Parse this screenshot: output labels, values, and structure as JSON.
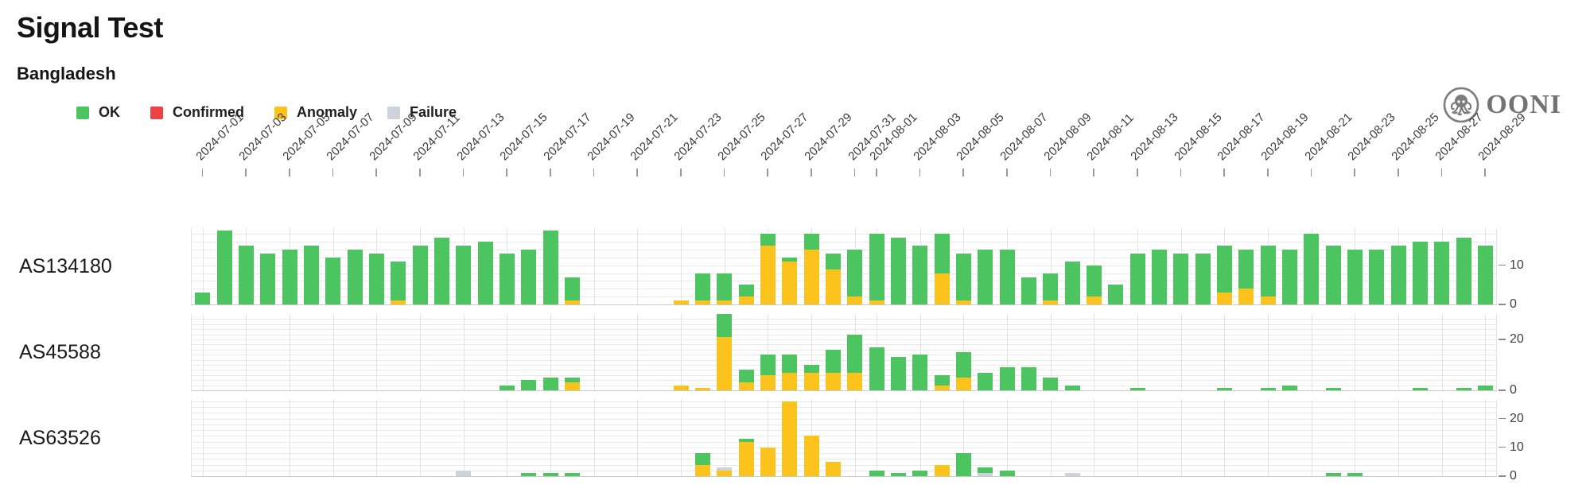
{
  "logo": {
    "text": "OONI"
  },
  "chart_data": {
    "type": "bar",
    "stacked": true,
    "title": "Signal Test",
    "subtitle": "Bangladesh",
    "grid": true,
    "legend_position": "top-left",
    "stack_order_bottom_to_top": [
      "anomaly",
      "failure",
      "ok"
    ],
    "colors": {
      "ok": "#4cc45f",
      "confirmed": "#ee4343",
      "anomaly": "#fbc31b",
      "failure": "#ccd3da"
    },
    "legend": [
      {
        "key": "ok",
        "label": "OK",
        "color": "#4cc45f"
      },
      {
        "key": "confirmed",
        "label": "Confirmed",
        "color": "#ee4343"
      },
      {
        "key": "anomaly",
        "label": "Anomaly",
        "color": "#fbc31b"
      },
      {
        "key": "failure",
        "label": "Failure",
        "color": "#ccd3da"
      }
    ],
    "x_start": "2024-07-01",
    "x_end": "2024-08-29",
    "days": 60,
    "x_tick_labels": [
      "2024-07-01",
      "2024-07-03",
      "2024-07-05",
      "2024-07-07",
      "2024-07-09",
      "2024-07-11",
      "2024-07-13",
      "2024-07-15",
      "2024-07-17",
      "2024-07-19",
      "2024-07-21",
      "2024-07-23",
      "2024-07-25",
      "2024-07-27",
      "2024-07-29",
      "2024-07-31",
      "2024-08-01",
      "2024-08-03",
      "2024-08-05",
      "2024-08-07",
      "2024-08-09",
      "2024-08-11",
      "2024-08-13",
      "2024-08-15",
      "2024-08-17",
      "2024-08-19",
      "2024-08-21",
      "2024-08-23",
      "2024-08-25",
      "2024-08-27",
      "2024-08-29"
    ],
    "rows": [
      {
        "label": "AS134180",
        "ymax": 19.5,
        "yticks": [
          0,
          10
        ],
        "ok": [
          3,
          19,
          15,
          13,
          14,
          15,
          12,
          14,
          13,
          10,
          15,
          17,
          15,
          16,
          13,
          14,
          19,
          6,
          0,
          0,
          0,
          0,
          0,
          7,
          7,
          3,
          3,
          1,
          4,
          4,
          12,
          17,
          17,
          15,
          10,
          12,
          14,
          14,
          7,
          7,
          11,
          8,
          5,
          13,
          14,
          13,
          13,
          12,
          10,
          13,
          14,
          18,
          15,
          14,
          14,
          15,
          16,
          16,
          17,
          15
        ],
        "anomaly": [
          0,
          0,
          0,
          0,
          0,
          0,
          0,
          0,
          0,
          1,
          0,
          0,
          0,
          0,
          0,
          0,
          0,
          1,
          0,
          0,
          0,
          0,
          1,
          1,
          1,
          2,
          15,
          11,
          14,
          9,
          2,
          1,
          0,
          0,
          8,
          1,
          0,
          0,
          0,
          1,
          0,
          2,
          0,
          0,
          0,
          0,
          0,
          3,
          4,
          2,
          0,
          0,
          0,
          0,
          0,
          0,
          0,
          0,
          0,
          0
        ],
        "failure": [
          0,
          0,
          0,
          0,
          0,
          0,
          0,
          0,
          0,
          0,
          0,
          0,
          0,
          0,
          0,
          0,
          0,
          0,
          0,
          0,
          0,
          0,
          0,
          0,
          0,
          0,
          0,
          0,
          0,
          0,
          0,
          0,
          0,
          0,
          0,
          0,
          0,
          0,
          0,
          0,
          0,
          0,
          0,
          0,
          0,
          0,
          0,
          0,
          0,
          0,
          0,
          0,
          0,
          0,
          0,
          0,
          0,
          0,
          0,
          0
        ]
      },
      {
        "label": "AS45588",
        "ymax": 30,
        "yticks": [
          0,
          20
        ],
        "ok": [
          0,
          0,
          0,
          0,
          0,
          0,
          0,
          0,
          0,
          0,
          0,
          0,
          0,
          0,
          2,
          4,
          5,
          2,
          0,
          0,
          0,
          0,
          0,
          0,
          9,
          5,
          8,
          7,
          3,
          9,
          15,
          17,
          13,
          14,
          4,
          10,
          7,
          9,
          9,
          5,
          2,
          0,
          0,
          1,
          0,
          0,
          0,
          1,
          0,
          1,
          2,
          0,
          1,
          0,
          0,
          0,
          1,
          0,
          1,
          2
        ],
        "anomaly": [
          0,
          0,
          0,
          0,
          0,
          0,
          0,
          0,
          0,
          0,
          0,
          0,
          0,
          0,
          0,
          0,
          0,
          3,
          0,
          0,
          0,
          0,
          2,
          1,
          21,
          3,
          6,
          7,
          7,
          7,
          7,
          0,
          0,
          0,
          2,
          5,
          0,
          0,
          0,
          0,
          0,
          0,
          0,
          0,
          0,
          0,
          0,
          0,
          0,
          0,
          0,
          0,
          0,
          0,
          0,
          0,
          0,
          0,
          0,
          0
        ],
        "failure": [
          0,
          0,
          0,
          0,
          0,
          0,
          0,
          0,
          0,
          0,
          0,
          0,
          0,
          0,
          0,
          0,
          0,
          0,
          0,
          0,
          0,
          0,
          0,
          0,
          0,
          0,
          0,
          0,
          0,
          0,
          0,
          0,
          0,
          0,
          0,
          0,
          0,
          0,
          0,
          0,
          0,
          0,
          0,
          0,
          0,
          0,
          0,
          0,
          0,
          0,
          0,
          0,
          0,
          0,
          0,
          0,
          0,
          0,
          0,
          0
        ]
      },
      {
        "label": "AS63526",
        "ymax": 26.5,
        "yticks": [
          0,
          10,
          20
        ],
        "ok": [
          0,
          0,
          0,
          0,
          0,
          0,
          0,
          0,
          0,
          0,
          0,
          0,
          0,
          0,
          0,
          1,
          1,
          1,
          0,
          0,
          0,
          0,
          0,
          4,
          0,
          1,
          0,
          0,
          0,
          0,
          0,
          2,
          1,
          2,
          0,
          8,
          2,
          2,
          0,
          0,
          0,
          0,
          0,
          0,
          0,
          0,
          0,
          0,
          0,
          0,
          0,
          0,
          1,
          1,
          0,
          0,
          0,
          0,
          0,
          0
        ],
        "anomaly": [
          0,
          0,
          0,
          0,
          0,
          0,
          0,
          0,
          0,
          0,
          0,
          0,
          0,
          0,
          0,
          0,
          0,
          0,
          0,
          0,
          0,
          0,
          0,
          4,
          2,
          12,
          10,
          26,
          14,
          5,
          0,
          0,
          0,
          0,
          4,
          0,
          0,
          0,
          0,
          0,
          0,
          0,
          0,
          0,
          0,
          0,
          0,
          0,
          0,
          0,
          0,
          0,
          0,
          0,
          0,
          0,
          0,
          0,
          0,
          0
        ],
        "failure": [
          0,
          0,
          0,
          0,
          0,
          0,
          0,
          0,
          0,
          0,
          0,
          0,
          2,
          0,
          0,
          0,
          0,
          0,
          0,
          0,
          0,
          0,
          0,
          0,
          1,
          0,
          0,
          0,
          0,
          0,
          0,
          0,
          0,
          0,
          0,
          0,
          1,
          0,
          0,
          0,
          1,
          0,
          0,
          0,
          0,
          0,
          0,
          0,
          0,
          0,
          0,
          0,
          0,
          0,
          0,
          0,
          0,
          0,
          0,
          0
        ]
      }
    ]
  }
}
